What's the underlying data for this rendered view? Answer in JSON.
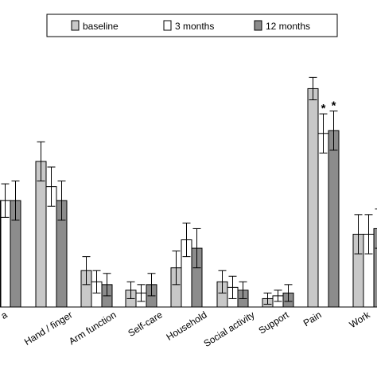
{
  "chart_data": {
    "type": "bar",
    "categories": [
      "a",
      "Hand / finger",
      "Arm function",
      "Self-care",
      "Household",
      "Social activity",
      "Support",
      "Pain",
      "Work"
    ],
    "series": [
      {
        "name": "baseline",
        "color": "#c8c8c8",
        "values": [
          null,
          52,
          13,
          6,
          14,
          9,
          3,
          78,
          26
        ],
        "errors": [
          null,
          7,
          5,
          3,
          6,
          4,
          2,
          4,
          7
        ]
      },
      {
        "name": "3 months",
        "color": "#ffffff",
        "values": [
          38,
          43,
          9,
          5,
          24,
          7,
          4,
          62,
          26
        ],
        "errors": [
          6,
          7,
          4,
          3,
          6,
          4,
          2,
          7,
          7
        ]
      },
      {
        "name": "12 months",
        "color": "#8c8c8c",
        "values": [
          38,
          38,
          8,
          8,
          21,
          6,
          5,
          63,
          28
        ],
        "errors": [
          7,
          7,
          4,
          4,
          7,
          3,
          3,
          7,
          7
        ]
      },
      {
        "name": "",
        "color": "#000000",
        "values": [
          38,
          null,
          null,
          null,
          null,
          null,
          null,
          null,
          null
        ],
        "errors": [
          null,
          null,
          null,
          null,
          null,
          null,
          null,
          null,
          null
        ]
      }
    ],
    "annotations": [
      {
        "category": "Pain",
        "series": "3 months",
        "text": "*"
      },
      {
        "category": "Pain",
        "series": "12 months",
        "text": "*"
      }
    ],
    "ylim": [
      0,
      90
    ],
    "grid": false,
    "legend_position": "top"
  }
}
